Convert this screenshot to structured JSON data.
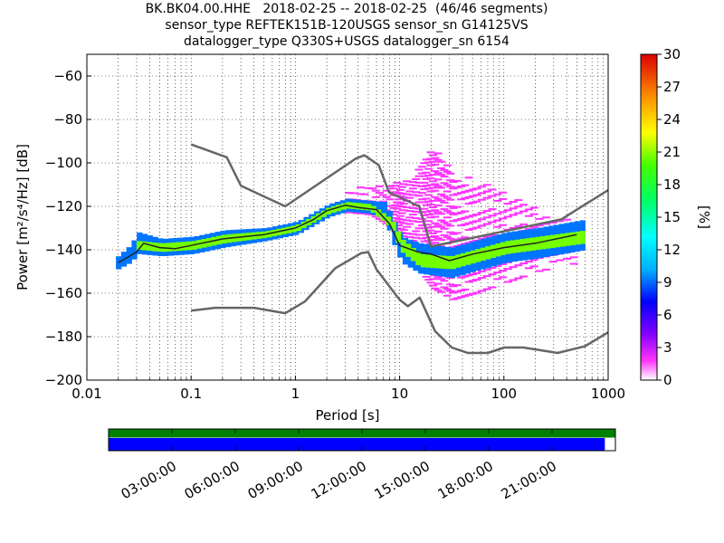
{
  "header": {
    "title_line1": "BK.BK04.00.HHE   2018-02-25 -- 2018-02-25  (46/46 segments)",
    "title_line2": "sensor_type REFTEK151B-120USGS sensor_sn G14125VS",
    "title_line3": "datalogger_type Q330S+USGS datalogger_sn 6154"
  },
  "chart_data": [
    {
      "type": "heatmap",
      "title": "BK.BK04.00.HHE   2018-02-25 -- 2018-02-25  (46/46 segments)",
      "xlabel": "Period [s]",
      "ylabel": "Power [m²/s⁴/Hz] [dB]",
      "x_scale": "log",
      "xlim": [
        0.01,
        1000
      ],
      "ylim": [
        -200,
        -50
      ],
      "x_ticks": [
        0.01,
        0.1,
        1,
        10,
        100,
        1000
      ],
      "x_tick_labels": [
        "0.01",
        "0.1",
        "1",
        "10",
        "100",
        "1000"
      ],
      "y_ticks": [
        -200,
        -180,
        -160,
        -140,
        -120,
        -100,
        -80,
        -60
      ],
      "y_tick_labels": [
        "−200",
        "−180",
        "−160",
        "−140",
        "−120",
        "−100",
        "−80",
        "−60"
      ],
      "grid": true,
      "colorbar": {
        "label": "[%]",
        "range": [
          0,
          30
        ],
        "ticks": [
          0,
          3,
          6,
          9,
          12,
          15,
          18,
          21,
          24,
          27,
          30
        ],
        "tick_labels": [
          "0",
          "3",
          "6",
          "9",
          "12",
          "15",
          "18",
          "21",
          "24",
          "27",
          "30"
        ]
      },
      "noise_model_high": {
        "x": [
          0.1,
          0.22,
          0.3,
          0.8,
          3.8,
          4.6,
          6.3,
          7.9,
          15.4,
          20,
          354.8,
          1000
        ],
        "y": [
          -91.5,
          -97.4,
          -110.5,
          -120,
          -98,
          -96.5,
          -101,
          -113.5,
          -120,
          -138.5,
          -126,
          -112.5
        ]
      },
      "noise_model_low": {
        "x": [
          0.1,
          0.17,
          0.4,
          0.8,
          1.24,
          2.4,
          4.3,
          5,
          6,
          10,
          12,
          15.6,
          21.9,
          31.6,
          45,
          70,
          101,
          154,
          328,
          600,
          1000
        ],
        "y": [
          -168,
          -166.7,
          -166.7,
          -169.2,
          -163.7,
          -148.6,
          -141.5,
          -141.1,
          -149,
          -163,
          -166,
          -162,
          -177.5,
          -185,
          -187.5,
          -187.5,
          -185,
          -185,
          -187.5,
          -184.4,
          -178
        ]
      },
      "median_curve": {
        "x": [
          0.02,
          0.03,
          0.035,
          0.05,
          0.07,
          0.1,
          0.2,
          0.5,
          1,
          1.5,
          2,
          3,
          4,
          6,
          8,
          10,
          15,
          20,
          30,
          50,
          100,
          200,
          500
        ],
        "y": [
          -146,
          -141,
          -137,
          -139,
          -139.5,
          -138,
          -135,
          -133,
          -130,
          -126,
          -122,
          -119.5,
          -120.5,
          -121.5,
          -128,
          -138,
          -141,
          -142,
          -145,
          -142,
          -139,
          -137,
          -133
        ]
      },
      "density_bands": [
        {
          "x": [
            0.019,
            0.025,
            0.03,
            0.05,
            0.1,
            0.2,
            0.5,
            1,
            2,
            3,
            5,
            7,
            8,
            10,
            15,
            30,
            50,
            100,
            200,
            600
          ],
          "center": [
            -146,
            -142,
            -137,
            -139,
            -138,
            -135,
            -133,
            -130,
            -122,
            -119.5,
            -120.5,
            -122,
            -130,
            -140,
            -144,
            -146,
            -143,
            -139,
            -137,
            -133
          ],
          "half_width": [
            3,
            4,
            5,
            4,
            4,
            4,
            3,
            3,
            3,
            3,
            3,
            4,
            5,
            6,
            7,
            7,
            7,
            7,
            7,
            7
          ],
          "percent": 9
        },
        {
          "x": [
            0.03,
            0.05,
            0.1,
            0.2,
            0.5,
            1,
            2,
            3,
            5,
            8,
            10,
            15,
            30,
            100,
            600
          ],
          "center": [
            -138,
            -139,
            -138,
            -135,
            -133,
            -130,
            -122,
            -119.5,
            -120.5,
            -128,
            -138,
            -145,
            -146,
            -139,
            -134
          ],
          "half_width": [
            2,
            2,
            2,
            2,
            1.5,
            1.5,
            1.5,
            1.5,
            1.5,
            2,
            3,
            3,
            3,
            3,
            3
          ],
          "percent": 20
        }
      ],
      "outlier_cloud": {
        "x": [
          3,
          5,
          8,
          10,
          15,
          20,
          30,
          50,
          100,
          200,
          500
        ],
        "upper": [
          -112,
          -111,
          -110,
          -108,
          -100,
          -93,
          -104,
          -108,
          -115,
          -121,
          -126
        ],
        "lower": [
          -123,
          -124,
          -130,
          -140,
          -150,
          -158,
          -163,
          -160,
          -155,
          -150,
          -146
        ],
        "percent": 1.5
      }
    },
    {
      "type": "timeline",
      "tick_labels": [
        "03:00:00",
        "06:00:00",
        "09:00:00",
        "12:00:00",
        "15:00:00",
        "18:00:00",
        "21:00:00"
      ],
      "tick_hours": [
        3,
        6,
        9,
        12,
        15,
        18,
        21
      ],
      "range_hours": [
        0,
        24
      ],
      "data_coverage_end_hours": 23.5,
      "data_color": "#0000ff",
      "gap_free_color": "#008000"
    }
  ]
}
